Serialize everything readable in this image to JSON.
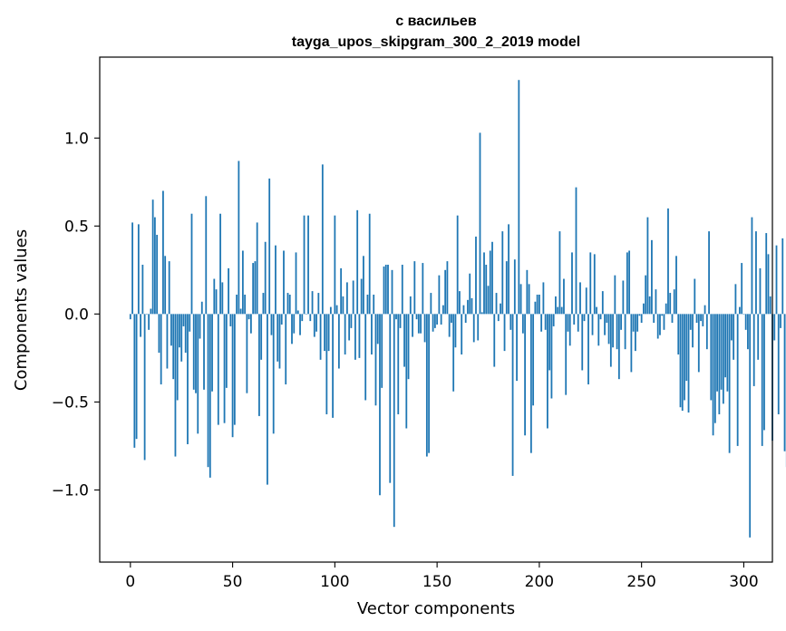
{
  "chart_data": {
    "type": "bar",
    "title": "с васильев",
    "subtitle": "tayga_upos_skipgram_300_2_2019 model",
    "xlabel": "Vector components",
    "ylabel": "Components values",
    "xlim": [
      -15,
      314
    ],
    "ylim": [
      -1.41,
      1.46
    ],
    "xticks": [
      0,
      50,
      100,
      150,
      200,
      250,
      300
    ],
    "xtick_labels": [
      "0",
      "50",
      "100",
      "150",
      "200",
      "250",
      "300"
    ],
    "yticks": [
      -1.0,
      -0.5,
      0.0,
      0.5,
      1.0
    ],
    "ytick_labels": [
      "−1.0",
      "−0.5",
      "0.0",
      "0.5",
      "1.0"
    ],
    "bar_color": "#1f77b4",
    "values": [
      -0.03,
      0.52,
      -0.76,
      -0.71,
      0.51,
      -0.13,
      0.28,
      -0.83,
      0.0,
      -0.09,
      0.03,
      0.65,
      0.55,
      0.45,
      -0.22,
      -0.4,
      0.7,
      0.33,
      -0.31,
      0.3,
      -0.18,
      -0.37,
      -0.81,
      -0.49,
      -0.19,
      -0.27,
      -0.07,
      -0.22,
      -0.74,
      -0.1,
      0.57,
      -0.43,
      -0.45,
      -0.68,
      -0.14,
      0.07,
      -0.43,
      0.67,
      -0.87,
      -0.93,
      -0.44,
      0.2,
      0.14,
      -0.63,
      0.57,
      0.18,
      -0.62,
      -0.42,
      0.26,
      -0.07,
      -0.7,
      -0.63,
      0.11,
      0.87,
      0.03,
      0.36,
      0.11,
      -0.45,
      -0.03,
      -0.11,
      0.29,
      0.3,
      0.52,
      -0.58,
      -0.26,
      0.12,
      0.41,
      -0.97,
      0.77,
      -0.12,
      -0.68,
      0.39,
      -0.27,
      -0.31,
      -0.06,
      0.36,
      -0.4,
      0.12,
      0.11,
      -0.17,
      -0.11,
      0.35,
      0.02,
      -0.12,
      -0.04,
      0.56,
      0.0,
      0.56,
      -0.04,
      0.13,
      -0.13,
      -0.1,
      0.12,
      -0.26,
      0.85,
      -0.21,
      -0.57,
      -0.21,
      0.04,
      -0.59,
      0.56,
      0.05,
      -0.31,
      0.26,
      0.1,
      -0.23,
      0.18,
      -0.15,
      -0.08,
      0.19,
      -0.26,
      0.59,
      -0.25,
      0.2,
      0.33,
      -0.49,
      0.11,
      0.57,
      -0.23,
      0.11,
      -0.52,
      -0.17,
      -1.03,
      -0.42,
      0.27,
      0.28,
      0.28,
      -0.96,
      0.25,
      -1.21,
      -0.03,
      -0.57,
      -0.08,
      0.28,
      -0.3,
      -0.65,
      -0.37,
      0.1,
      -0.13,
      0.3,
      -0.03,
      -0.11,
      -0.11,
      0.29,
      -0.16,
      -0.81,
      -0.79,
      0.12,
      -0.1,
      -0.08,
      -0.06,
      0.22,
      -0.06,
      0.05,
      0.25,
      0.3,
      -0.13,
      -0.05,
      -0.44,
      -0.19,
      0.56,
      0.13,
      -0.23,
      0.05,
      -0.05,
      0.08,
      0.23,
      0.09,
      -0.16,
      0.44,
      -0.15,
      1.03,
      0.01,
      0.35,
      0.28,
      0.16,
      0.36,
      0.41,
      -0.3,
      0.12,
      -0.04,
      0.06,
      0.47,
      -0.21,
      0.3,
      0.51,
      -0.09,
      -0.92,
      0.31,
      -0.38,
      1.33,
      0.17,
      -0.11,
      -0.69,
      0.25,
      0.17,
      -0.79,
      -0.52,
      0.07,
      0.11,
      0.11,
      -0.1,
      0.18,
      -0.09,
      -0.65,
      -0.32,
      -0.48,
      -0.07,
      0.1,
      0.04,
      0.47,
      0.04,
      0.2,
      -0.46,
      -0.1,
      -0.18,
      0.35,
      -0.06,
      0.72,
      -0.1,
      0.18,
      -0.32,
      -0.04,
      0.15,
      -0.4,
      0.35,
      -0.12,
      0.34,
      0.04,
      -0.18,
      -0.03,
      0.13,
      -0.12,
      -0.05,
      -0.17,
      -0.3,
      -0.19,
      0.22,
      -0.2,
      -0.37,
      -0.09,
      0.19,
      -0.2,
      0.35,
      0.36,
      -0.33,
      -0.1,
      -0.21,
      -0.1,
      -0.01,
      -0.05,
      0.06,
      0.22,
      0.55,
      0.1,
      0.42,
      -0.05,
      0.14,
      -0.14,
      -0.12,
      -0.01,
      -0.09,
      0.06,
      0.6,
      0.12,
      -0.05,
      0.14,
      0.33,
      -0.23,
      -0.53,
      -0.55,
      -0.49,
      -0.38,
      -0.56,
      -0.09,
      -0.19,
      0.2,
      -0.05,
      -0.33,
      -0.04,
      -0.07,
      0.05,
      -0.2,
      0.47,
      -0.49,
      -0.69,
      -0.62,
      -0.44,
      -0.57,
      -0.43,
      -0.51,
      -0.36,
      -0.44,
      -0.79,
      -0.15,
      -0.26,
      0.17,
      -0.75,
      0.04,
      0.29,
      0.0,
      -0.09,
      -0.2,
      -1.27,
      0.55,
      -0.41,
      0.47,
      -0.26,
      0.26,
      -0.75,
      -0.66,
      0.46,
      0.34,
      0.1,
      -0.72,
      -0.15,
      0.39,
      -0.57,
      -0.08,
      0.43,
      -0.78,
      -0.87,
      -0.31,
      0.0,
      -0.05,
      0.13,
      0.12,
      0.15,
      0.05,
      0.05,
      -0.45,
      -0.21,
      0.03,
      -0.05,
      0.11,
      0.12,
      -0.44,
      -0.03,
      -0.01,
      0.84,
      0.0,
      0.15,
      -0.49,
      0.08,
      -0.03,
      0.02,
      -0.03,
      -0.05,
      -0.08,
      0.0,
      -0.05,
      -0.3,
      -0.4,
      -0.22,
      0.09,
      0.02,
      -0.15,
      -0.02,
      -0.16,
      -0.21,
      -0.27,
      0.41,
      -0.32,
      -0.3,
      0.35,
      -0.05,
      0.03,
      0.13,
      -0.08,
      0.08,
      -0.4,
      0.1,
      -0.11,
      0.21,
      0.17,
      0.46,
      0.0,
      0.2,
      -0.05,
      -0.09,
      0.37,
      -0.73,
      0.43,
      -0.21,
      -0.46,
      -0.17,
      -0.13,
      -0.6,
      0.52,
      -0.62,
      -0.48,
      -0.07,
      0.01,
      -0.22,
      0.01,
      -0.06,
      -0.2,
      -0.62,
      0.01,
      0.09,
      0.05,
      -0.05,
      -0.7,
      0.29,
      0.37,
      -0.27,
      -0.59,
      -0.74,
      0.23,
      -0.15,
      -0.06,
      -0.27,
      0.55,
      0.06,
      -0.41,
      -0.04,
      0.07,
      0.06,
      -0.37,
      0.13,
      0.11,
      0.0,
      -0.4,
      -0.64,
      0.01,
      -0.02,
      -0.1,
      0.16,
      -0.03,
      -0.38,
      0.43,
      0.1,
      -0.71,
      0.14
    ]
  }
}
